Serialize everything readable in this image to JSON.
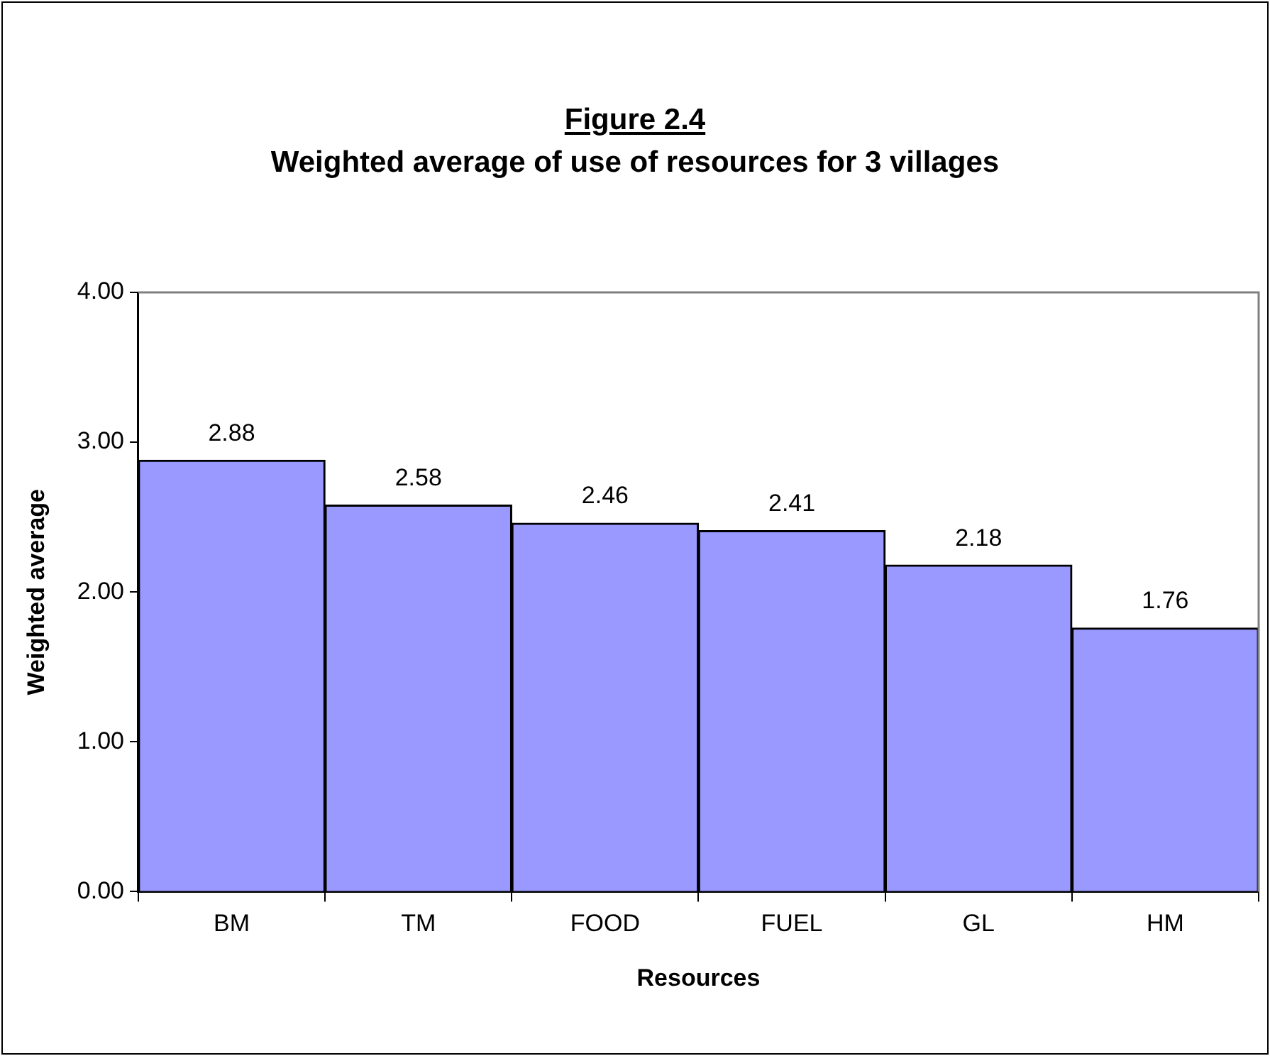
{
  "chart_data": {
    "type": "bar",
    "title": "Figure 2.4",
    "subtitle": "Weighted average of use of resources for 3 villages",
    "xlabel": "Resources",
    "ylabel": "Weighted average",
    "categories": [
      "BM",
      "TM",
      "FOOD",
      "FUEL",
      "GL",
      "HM"
    ],
    "values": [
      2.88,
      2.58,
      2.46,
      2.41,
      2.18,
      1.76
    ],
    "color": "#9999ff",
    "ylim": [
      0,
      4
    ],
    "yticks": [
      {
        "value": 0,
        "label": "0.00"
      },
      {
        "value": 1,
        "label": "1.00"
      },
      {
        "value": 2,
        "label": "2.00"
      },
      {
        "value": 3,
        "label": "3.00"
      },
      {
        "value": 4,
        "label": "4.00"
      }
    ],
    "grid": false,
    "legend": false,
    "data_labels": true
  }
}
